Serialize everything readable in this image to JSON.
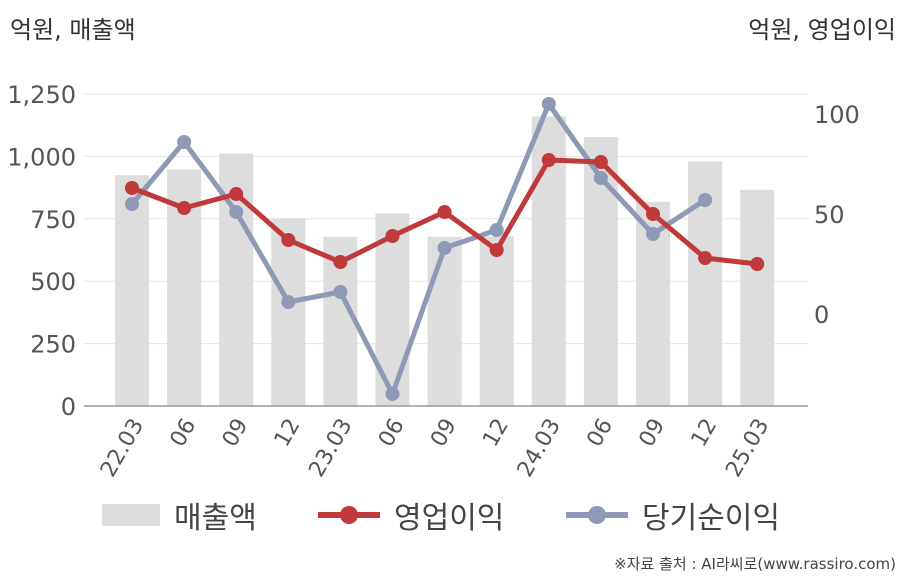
{
  "labels": {
    "left_unit": "억원, 매출액",
    "right_unit": "억원, 영업이익",
    "source": "※자료 출처 : AI라씨로(www.rassiro.com)"
  },
  "chart_data": {
    "type": "bar+line",
    "categories": [
      "22.03",
      "06",
      "09",
      "12",
      "23.03",
      "06",
      "09",
      "12",
      "24.03",
      "06",
      "09",
      "12",
      "25.03"
    ],
    "series": [
      {
        "name": "매출액",
        "type": "bar",
        "axis": "left",
        "color": "#dddddd",
        "values": [
          925,
          948,
          1012,
          752,
          678,
          772,
          678,
          680,
          1160,
          1078,
          818,
          980,
          866
        ]
      },
      {
        "name": "영업이익",
        "type": "line",
        "axis": "right",
        "color": "#c0393b",
        "values": [
          63,
          53,
          60,
          37,
          26,
          39,
          51,
          32,
          77,
          76,
          50,
          28,
          25
        ]
      },
      {
        "name": "당기순이익",
        "type": "line",
        "axis": "right",
        "color": "#8e9ab5",
        "values": [
          55,
          86,
          51,
          6,
          11,
          -40,
          33,
          42,
          105,
          68,
          40,
          57,
          null
        ]
      }
    ],
    "y_left": {
      "min": 0,
      "max": 1250,
      "ticks": [
        0,
        250,
        500,
        750,
        1000,
        1250
      ],
      "tick_labels": [
        "0",
        "250",
        "500",
        "750",
        "1,000",
        "1,250"
      ]
    },
    "y_right": {
      "min": -46,
      "max": 117,
      "ticks": [
        0,
        50,
        100
      ],
      "tick_labels": [
        "0",
        "50",
        "100"
      ]
    },
    "grid": true,
    "legend_position": "bottom"
  }
}
